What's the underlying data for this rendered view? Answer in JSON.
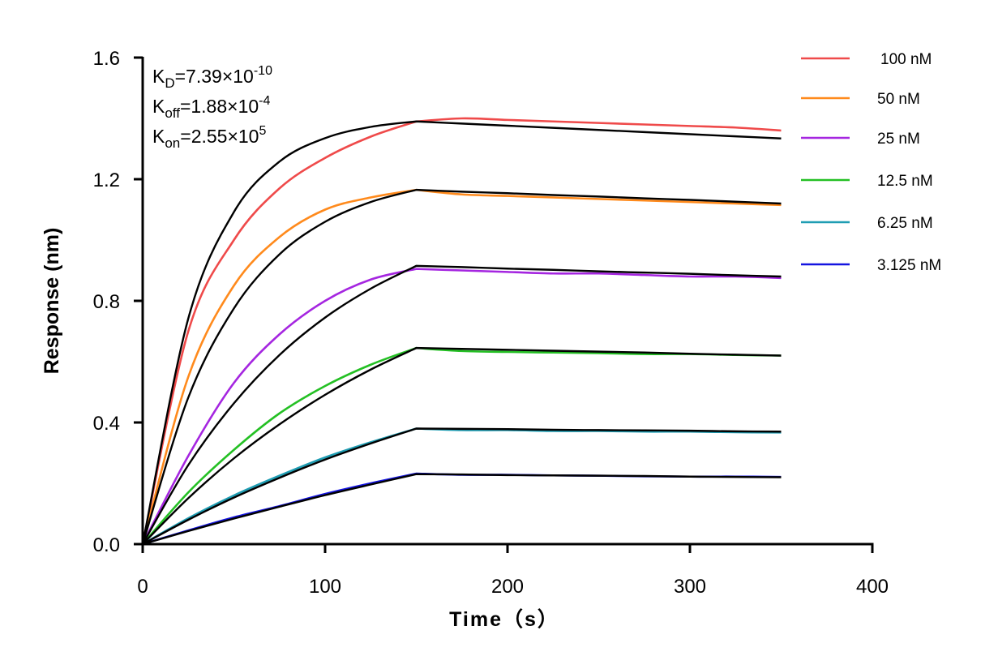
{
  "chart_data": {
    "type": "line",
    "xlabel": "Time（s）",
    "ylabel": "Response (nm)",
    "xlim": [
      0,
      400
    ],
    "ylim": [
      0,
      1.6
    ],
    "xticks": [
      "0",
      "100",
      "200",
      "300",
      "400"
    ],
    "yticks": [
      "0.0",
      "0.4",
      "0.8",
      "1.2",
      "1.6"
    ],
    "grid": false,
    "legend_position": "top-right",
    "annotations": [
      {
        "base": "K",
        "sub": "D",
        "value": "=7.39×10",
        "exp": "-10"
      },
      {
        "base": "K",
        "sub": "off",
        "value": "=1.88×10",
        "exp": "-4"
      },
      {
        "base": "K",
        "sub": "on",
        "value": "=2.55×10",
        "exp": "5"
      }
    ],
    "x": [
      0,
      25,
      50,
      75,
      100,
      125,
      150,
      175,
      200,
      225,
      250,
      275,
      300,
      325,
      350
    ],
    "series": [
      {
        "name": "100 nM",
        "color": "#ef4a4a",
        "values": [
          0,
          0.7,
          1.0,
          1.17,
          1.27,
          1.34,
          1.39,
          1.4,
          1.395,
          1.39,
          1.385,
          1.38,
          1.375,
          1.37,
          1.36
        ],
        "fit": [
          0,
          0.742,
          1.092,
          1.258,
          1.335,
          1.372,
          1.39,
          1.383,
          1.376,
          1.369,
          1.362,
          1.355,
          1.348,
          1.341,
          1.334
        ]
      },
      {
        "name": "50 nM",
        "color": "#ff8a1c",
        "values": [
          0,
          0.55,
          0.85,
          1.01,
          1.1,
          1.14,
          1.165,
          1.15,
          1.145,
          1.14,
          1.135,
          1.13,
          1.125,
          1.12,
          1.115
        ],
        "fit": [
          0,
          0.482,
          0.775,
          0.953,
          1.06,
          1.125,
          1.165,
          1.159,
          1.154,
          1.148,
          1.143,
          1.137,
          1.132,
          1.126,
          1.12
        ]
      },
      {
        "name": "25 nM",
        "color": "#a526e0",
        "values": [
          0,
          0.29,
          0.53,
          0.69,
          0.8,
          0.87,
          0.905,
          0.9,
          0.895,
          0.89,
          0.89,
          0.885,
          0.88,
          0.88,
          0.875
        ],
        "fit": [
          0,
          0.26,
          0.463,
          0.622,
          0.745,
          0.84,
          0.915,
          0.911,
          0.906,
          0.902,
          0.897,
          0.893,
          0.889,
          0.884,
          0.88
        ]
      },
      {
        "name": "12.5 nM",
        "color": "#24c024",
        "values": [
          0,
          0.17,
          0.31,
          0.43,
          0.52,
          0.59,
          0.645,
          0.635,
          0.632,
          0.63,
          0.628,
          0.625,
          0.625,
          0.622,
          0.62
        ],
        "fit": [
          0,
          0.151,
          0.282,
          0.394,
          0.491,
          0.574,
          0.645,
          0.642,
          0.639,
          0.636,
          0.633,
          0.63,
          0.626,
          0.623,
          0.62
        ]
      },
      {
        "name": "6.25 nM",
        "color": "#1f9db3",
        "values": [
          0,
          0.085,
          0.16,
          0.225,
          0.285,
          0.335,
          0.38,
          0.375,
          0.375,
          0.372,
          0.372,
          0.37,
          0.37,
          0.368,
          0.367
        ],
        "fit": [
          0,
          0.08,
          0.153,
          0.218,
          0.278,
          0.331,
          0.38,
          0.379,
          0.378,
          0.376,
          0.375,
          0.374,
          0.373,
          0.371,
          0.37
        ]
      },
      {
        "name": "3.125 nM",
        "color": "#1414e0",
        "values": [
          0,
          0.045,
          0.088,
          0.125,
          0.165,
          0.2,
          0.232,
          0.228,
          0.228,
          0.226,
          0.225,
          0.223,
          0.222,
          0.222,
          0.221
        ],
        "fit": [
          0,
          0.043,
          0.084,
          0.123,
          0.161,
          0.196,
          0.23,
          0.229,
          0.227,
          0.226,
          0.225,
          0.224,
          0.222,
          0.221,
          0.22
        ]
      }
    ],
    "fit_color": "#000000"
  }
}
